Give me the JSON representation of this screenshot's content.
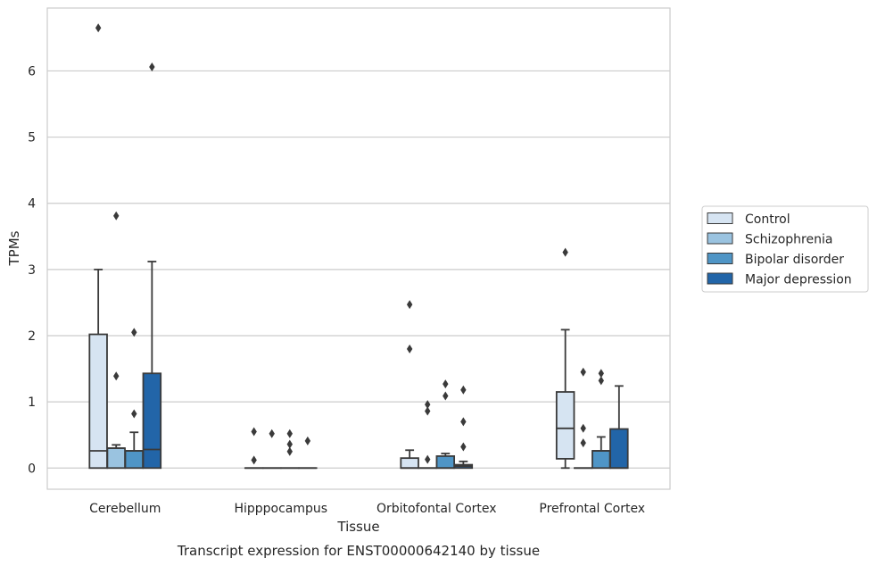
{
  "chart_data": {
    "type": "box",
    "title": "",
    "caption": "Transcript expression for ENST00000642140 by tissue",
    "xlabel": "Tissue",
    "ylabel": "TPMs",
    "ylim": [
      -0.32,
      6.95
    ],
    "yticks": [
      0,
      1,
      2,
      3,
      4,
      5,
      6
    ],
    "grid": "horizontal",
    "legend_position": "right",
    "categories": [
      "Cerebellum",
      "Hipppocampus",
      "Orbitofontal Cortex",
      "Prefrontal Cortex"
    ],
    "series": [
      {
        "name": "Control",
        "color": "#d6e4f2",
        "boxes": [
          {
            "q1": 0,
            "median": 0.26,
            "q3": 2.02,
            "whisker_low": 0,
            "whisker_high": 3.0,
            "outliers": [
              6.65
            ]
          },
          {
            "q1": 0,
            "median": 0,
            "q3": 0,
            "whisker_low": 0,
            "whisker_high": 0,
            "outliers": [
              0.55,
              0.12
            ]
          },
          {
            "q1": 0,
            "median": 0,
            "q3": 0.15,
            "whisker_low": 0,
            "whisker_high": 0.27,
            "outliers": [
              2.47,
              1.8
            ]
          },
          {
            "q1": 0.14,
            "median": 0.6,
            "q3": 1.15,
            "whisker_low": 0,
            "whisker_high": 2.09,
            "outliers": [
              3.26
            ]
          }
        ]
      },
      {
        "name": "Schizophrenia",
        "color": "#9ac3e0",
        "boxes": [
          {
            "q1": 0,
            "median": 0.3,
            "q3": 0.3,
            "whisker_low": 0,
            "whisker_high": 0.35,
            "outliers": [
              3.81,
              1.39
            ]
          },
          {
            "q1": 0,
            "median": 0,
            "q3": 0,
            "whisker_low": 0,
            "whisker_high": 0,
            "outliers": [
              0.52
            ]
          },
          {
            "q1": 0,
            "median": 0,
            "q3": 0,
            "whisker_low": 0,
            "whisker_high": 0,
            "outliers": [
              0.96,
              0.86,
              0.13
            ]
          },
          {
            "q1": 0,
            "median": 0,
            "q3": 0,
            "whisker_low": 0,
            "whisker_high": 0,
            "outliers": [
              1.45,
              0.6,
              0.38
            ]
          }
        ]
      },
      {
        "name": "Bipolar disorder",
        "color": "#4f95c6",
        "boxes": [
          {
            "q1": 0,
            "median": 0.26,
            "q3": 0.26,
            "whisker_low": 0,
            "whisker_high": 0.54,
            "outliers": [
              2.05,
              0.82
            ]
          },
          {
            "q1": 0,
            "median": 0,
            "q3": 0,
            "whisker_low": 0,
            "whisker_high": 0,
            "outliers": [
              0.52,
              0.36,
              0.25
            ]
          },
          {
            "q1": 0,
            "median": 0,
            "q3": 0.18,
            "whisker_low": 0,
            "whisker_high": 0.22,
            "outliers": [
              1.27,
              1.09
            ]
          },
          {
            "q1": 0,
            "median": 0.26,
            "q3": 0.26,
            "whisker_low": 0,
            "whisker_high": 0.47,
            "outliers": [
              1.43,
              1.32
            ]
          }
        ]
      },
      {
        "name": "Major depression",
        "color": "#2265a8",
        "boxes": [
          {
            "q1": 0,
            "median": 0.28,
            "q3": 1.43,
            "whisker_low": 0,
            "whisker_high": 3.12,
            "outliers": [
              6.06
            ]
          },
          {
            "q1": 0,
            "median": 0,
            "q3": 0,
            "whisker_low": 0,
            "whisker_high": 0,
            "outliers": [
              0.41
            ]
          },
          {
            "q1": 0,
            "median": 0.03,
            "q3": 0.05,
            "whisker_low": 0,
            "whisker_high": 0.1,
            "outliers": [
              1.18,
              0.7,
              0.32
            ]
          },
          {
            "q1": 0,
            "median": 0,
            "q3": 0.59,
            "whisker_low": 0,
            "whisker_high": 1.24,
            "outliers": []
          }
        ]
      }
    ]
  },
  "style": {
    "edge_color": "#3a3a3a",
    "grid_color": "#cccccc",
    "frame_color": "#cccccc"
  }
}
